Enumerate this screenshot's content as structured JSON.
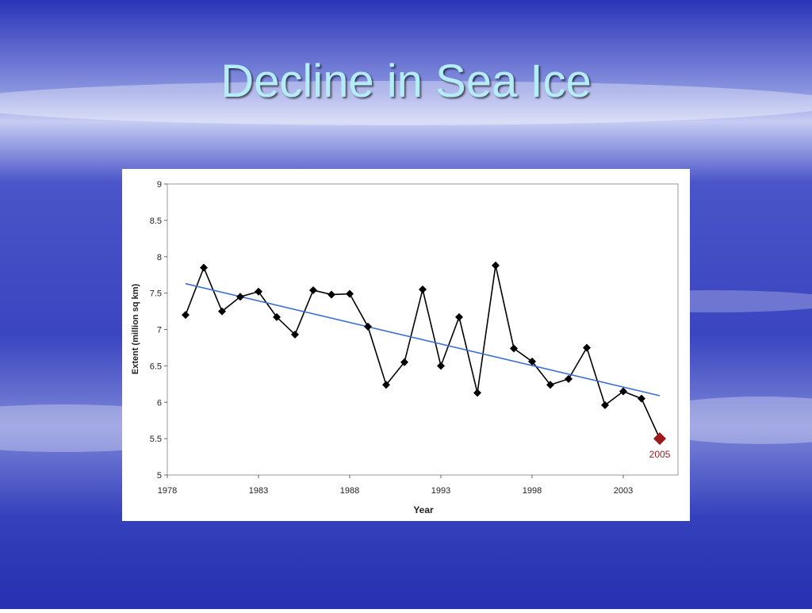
{
  "slide_title": "Decline in Sea Ice",
  "chart_data": {
    "type": "line",
    "x_label": "Year",
    "y_label": "Extent (million sq km)",
    "x": [
      1979,
      1980,
      1981,
      1982,
      1983,
      1984,
      1985,
      1986,
      1987,
      1988,
      1989,
      1990,
      1991,
      1992,
      1993,
      1994,
      1995,
      1996,
      1997,
      1998,
      1999,
      2000,
      2001,
      2002,
      2003,
      2004,
      2005
    ],
    "values": [
      7.2,
      7.85,
      7.25,
      7.45,
      7.52,
      7.17,
      6.93,
      7.54,
      7.48,
      7.49,
      7.04,
      6.24,
      6.55,
      7.55,
      6.5,
      7.17,
      6.13,
      7.88,
      6.74,
      6.56,
      6.24,
      6.32,
      6.75,
      5.96,
      6.15,
      6.05,
      5.5
    ],
    "color": "#000000",
    "trendline": {
      "x": [
        1979,
        2005
      ],
      "values": [
        7.63,
        6.09
      ],
      "color": "#3a6fd0"
    },
    "highlight": {
      "x": 2005,
      "label": "2005",
      "color": "#9b1b1b"
    },
    "xlim": [
      1978,
      2006
    ],
    "xticks": [
      1978,
      1983,
      1988,
      1993,
      1998,
      2003
    ],
    "ylim": [
      5,
      9
    ],
    "yticks": [
      5,
      5.5,
      6,
      6.5,
      7,
      7.5,
      8,
      8.5,
      9
    ],
    "grid": false
  }
}
